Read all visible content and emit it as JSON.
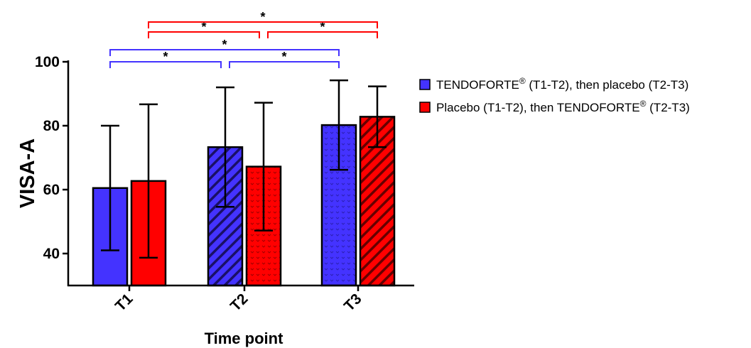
{
  "chart_data": {
    "type": "bar",
    "categories": [
      "T1",
      "T2",
      "T3"
    ],
    "series": [
      {
        "name": "TENDOFORTE® (T1-T2), then placebo (T2-T3)",
        "color": "#4433ff",
        "values": [
          60.5,
          73.3,
          80.2
        ],
        "error": [
          19.5,
          18.7,
          14.0
        ],
        "patterns": [
          "solid",
          "hatch",
          "dots"
        ]
      },
      {
        "name": "Placebo (T1-T2), then TENDOFORTE® (T2-T3)",
        "color": "#ff0000",
        "values": [
          62.7,
          67.2,
          82.8
        ],
        "error": [
          24.0,
          20.0,
          9.5
        ],
        "patterns": [
          "solid",
          "dots",
          "hatch"
        ]
      }
    ],
    "legend_names": [
      {
        "base": "TENDOFORTE",
        "sup": "®",
        "rest": " (T1-T2), then placebo (T2-T3)"
      },
      {
        "base": "Placebo (T1-T2), then TENDOFORTE",
        "sup": "®",
        "rest": " (T2-T3)"
      }
    ],
    "xlabel": "Time point",
    "ylabel": "VISA-A",
    "ylim": [
      30,
      100
    ],
    "yticks": [
      40,
      60,
      80,
      100
    ],
    "legend": "right",
    "grid": false,
    "significance": [
      {
        "series": 0,
        "from": "T1",
        "to": "T2",
        "label": "*",
        "level": 0
      },
      {
        "series": 0,
        "from": "T2",
        "to": "T3",
        "label": "*",
        "level": 0
      },
      {
        "series": 0,
        "from": "T1",
        "to": "T3",
        "label": "*",
        "level": 1
      },
      {
        "series": 1,
        "from": "T1",
        "to": "T2",
        "label": "*",
        "level": 0
      },
      {
        "series": 1,
        "from": "T2",
        "to": "T3",
        "label": "*",
        "level": 0
      },
      {
        "series": 1,
        "from": "T1",
        "to": "T3",
        "label": "*",
        "level": 1
      }
    ]
  }
}
